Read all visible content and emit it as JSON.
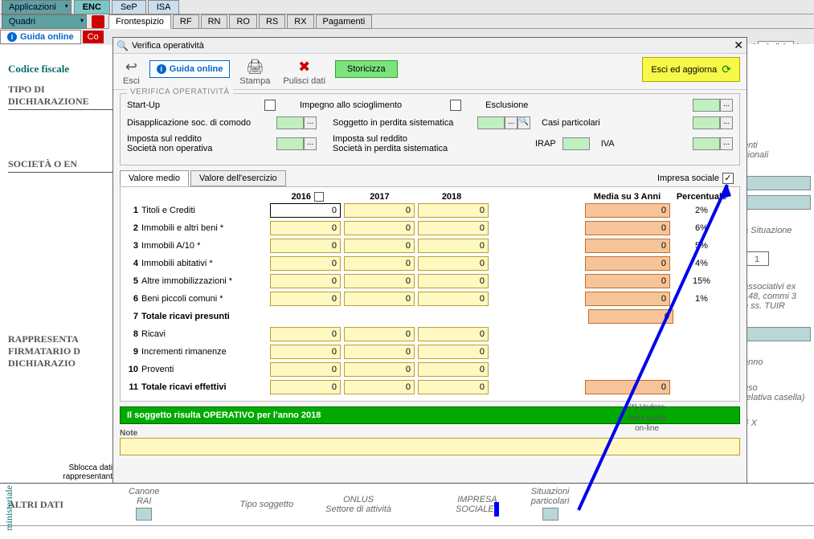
{
  "topbar1": {
    "app_dropdown": "Applicazioni",
    "tabs": [
      "ENC",
      "SeP",
      "ISA"
    ],
    "active": 0
  },
  "topbar2": {
    "quad_dropdown": "Quadri",
    "tabs": [
      "Frontespizio",
      "RF",
      "RN",
      "RO",
      "RS",
      "RX",
      "Pagamenti"
    ],
    "active": 0
  },
  "guide_online": "Guida online",
  "pagecount": "2 di 2",
  "bg": {
    "codice_fiscale": "Codice fiscale",
    "tipo": "TIPO DI\nDICHIARAZIONE",
    "societa": "SOCIETÀ O EN",
    "rappresenta": "RAPPRESENTA\nFIRMATARIO D\nDICHIARAZIO",
    "sblocca": "Sblocca dati\nrappresentant",
    "altri": "ALTRI DATI",
    "canone": "Canone\nRAI",
    "onlus": "ONLUS",
    "tipo_sog": "Tipo soggetto",
    "settore": "Settore  di  attività",
    "impresa_sociale": "IMPRESA\nSOCIALE",
    "situaz": "Situazioni\nparticolari"
  },
  "rightfrags": {
    "f1": "enti\nzionali",
    "f2": "a  Situazione",
    "num1": "1",
    "f3": "associativi ex\n148, commi 3\ne ss. TUIR",
    "f4": "anno",
    "f5": "eso\nrelativa casella)",
    "f6": "F   X"
  },
  "dialog": {
    "title": "Verifica operatività",
    "esci": "Esci",
    "guida": "Guida online",
    "stampa": "Stampa",
    "pulisci": "Pulisci dati",
    "storicizza": "Storicizza",
    "esci_aggiorna": "Esci ed aggiorna",
    "legend": "VERIFICA OPERATIVITÀ",
    "startup": "Start-Up",
    "impegno": "Impegno allo scioglimento",
    "esclusione": "Esclusione",
    "disapp": "Disapplicazione soc. di comodo",
    "sogg_perd": "Soggetto in perdita sistematica",
    "casi": "Casi particolari",
    "imp_redd": "Imposta sul reddito\nSocietà non operativa",
    "imp_redd2": "Imposta sul reddito\nSocietà in perdita sistematica",
    "irap": "IRAP",
    "iva": "IVA",
    "tab_valmedio": "Valore medio",
    "tab_valese": "Valore dell'esercizio",
    "impresa_sociale": "Impresa sociale",
    "years": [
      "2016",
      "2017",
      "2018"
    ],
    "media_hdr": "Media su 3 Anni",
    "perc_hdr": "Percentuale",
    "aside": "(*) Vedere\nnella guida\non-line",
    "rows": [
      {
        "n": "1",
        "lbl": "Titoli e Crediti",
        "y": [
          "0",
          "0",
          "0"
        ],
        "m": "0",
        "p": "2%",
        "sel": true
      },
      {
        "n": "2",
        "lbl": "Immobili e altri beni *",
        "y": [
          "0",
          "0",
          "0"
        ],
        "m": "0",
        "p": "6%"
      },
      {
        "n": "3",
        "lbl": "Immobili A/10 *",
        "y": [
          "0",
          "0",
          "0"
        ],
        "m": "0",
        "p": "5%"
      },
      {
        "n": "4",
        "lbl": "Immobili abitativi *",
        "y": [
          "0",
          "0",
          "0"
        ],
        "m": "0",
        "p": "4%"
      },
      {
        "n": "5",
        "lbl": "Altre immobilizzazioni *",
        "y": [
          "0",
          "0",
          "0"
        ],
        "m": "0",
        "p": "15%"
      },
      {
        "n": "6",
        "lbl": "Beni piccoli comuni *",
        "y": [
          "0",
          "0",
          "0"
        ],
        "m": "0",
        "p": "1%"
      },
      {
        "n": "7",
        "lbl": "Totale ricavi presunti",
        "bold": true,
        "noyears": true,
        "m": "0"
      },
      {
        "n": "8",
        "lbl": "Ricavi",
        "y": [
          "0",
          "0",
          "0"
        ]
      },
      {
        "n": "9",
        "lbl": "Incrementi rimanenze",
        "y": [
          "0",
          "0",
          "0"
        ]
      },
      {
        "n": "10",
        "lbl": "Proventi",
        "y": [
          "0",
          "0",
          "0"
        ]
      },
      {
        "n": "11",
        "lbl": "Totale ricavi effettivi",
        "bold": true,
        "y": [
          "0",
          "0",
          "0"
        ],
        "m": "0"
      }
    ],
    "status": "Il soggetto risulta OPERATIVO per l'anno 2018",
    "note_lbl": "Note"
  },
  "ministeriale": "ministeriale"
}
